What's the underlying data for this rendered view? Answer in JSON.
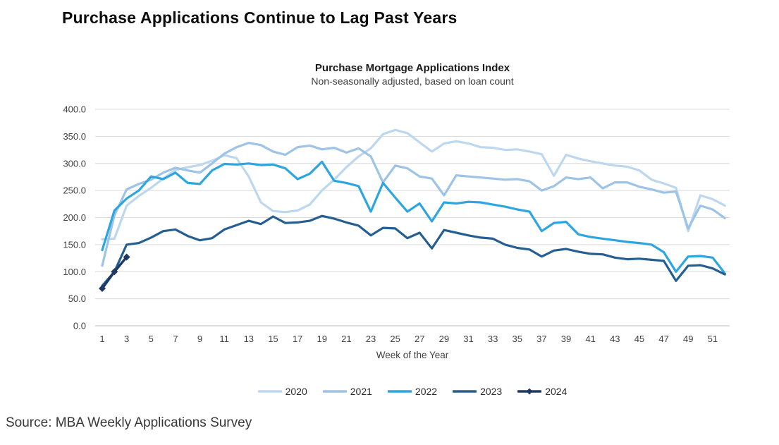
{
  "heading": "Purchase Applications Continue to Lag Past Years",
  "source": "Source: MBA Weekly Applications Survey",
  "chart_data": {
    "type": "line",
    "title": "Purchase Mortgage Applications Index",
    "subtitle": "Non-seasonally adjusted, based on loan count",
    "xlabel": "Week of the Year",
    "ylim": [
      0,
      400
    ],
    "y_tick_labels": [
      "0.0",
      "50.0",
      "100.0",
      "150.0",
      "200.0",
      "250.0",
      "300.0",
      "350.0",
      "400.0"
    ],
    "x_tick_labels": [
      1,
      3,
      5,
      7,
      9,
      11,
      13,
      15,
      17,
      19,
      21,
      23,
      25,
      27,
      29,
      31,
      33,
      35,
      37,
      39,
      41,
      43,
      45,
      47,
      49,
      51
    ],
    "grid": "horizontal",
    "grid_color": "#d9d9d9",
    "axis_line_color": "#bfbfbf",
    "tick_text_color": "#404040",
    "legend_position": "bottom",
    "series": [
      {
        "name": "2020",
        "color": "#BDD7EE",
        "marker": "none",
        "values": [
          160,
          161,
          222,
          240,
          255,
          272,
          288,
          293,
          297,
          305,
          315,
          310,
          276,
          228,
          212,
          210,
          213,
          224,
          250,
          270,
          293,
          313,
          328,
          354,
          362,
          356,
          339,
          322,
          337,
          341,
          337,
          330,
          329,
          325,
          326,
          322,
          317,
          277,
          316,
          309,
          304,
          300,
          296,
          294,
          287,
          270,
          263,
          255,
          175,
          241,
          234,
          222
        ]
      },
      {
        "name": "2021",
        "color": "#9DC3E6",
        "marker": "none",
        "values": [
          111,
          204,
          252,
          262,
          270,
          283,
          292,
          287,
          283,
          300,
          318,
          330,
          338,
          334,
          322,
          316,
          330,
          333,
          326,
          329,
          320,
          328,
          313,
          265,
          296,
          291,
          276,
          272,
          241,
          278,
          276,
          274,
          272,
          270,
          271,
          267,
          250,
          258,
          274,
          271,
          274,
          254,
          265,
          265,
          257,
          252,
          246,
          248,
          180,
          222,
          215,
          199
        ]
      },
      {
        "name": "2022",
        "color": "#2CA5E0",
        "marker": "none",
        "values": [
          140,
          213,
          235,
          250,
          276,
          271,
          283,
          264,
          262,
          287,
          299,
          298,
          300,
          297,
          298,
          291,
          271,
          281,
          303,
          268,
          264,
          258,
          211,
          264,
          237,
          211,
          226,
          193,
          228,
          226,
          229,
          228,
          224,
          220,
          215,
          211,
          175,
          190,
          192,
          169,
          164,
          161,
          158,
          155,
          153,
          150,
          136,
          100,
          128,
          129,
          126,
          97
        ]
      },
      {
        "name": "2023",
        "color": "#255E91",
        "marker": "none",
        "values": [
          74,
          100,
          150,
          153,
          163,
          175,
          178,
          166,
          158,
          162,
          178,
          186,
          194,
          188,
          202,
          190,
          191,
          194,
          203,
          198,
          191,
          185,
          167,
          181,
          180,
          162,
          172,
          143,
          177,
          172,
          167,
          163,
          161,
          150,
          144,
          141,
          128,
          139,
          142,
          137,
          133,
          132,
          126,
          123,
          124,
          122,
          120,
          83,
          111,
          112,
          106,
          95
        ]
      },
      {
        "name": "2024",
        "color": "#1F3864",
        "marker": "diamond",
        "values": [
          69,
          100,
          127
        ]
      }
    ]
  }
}
